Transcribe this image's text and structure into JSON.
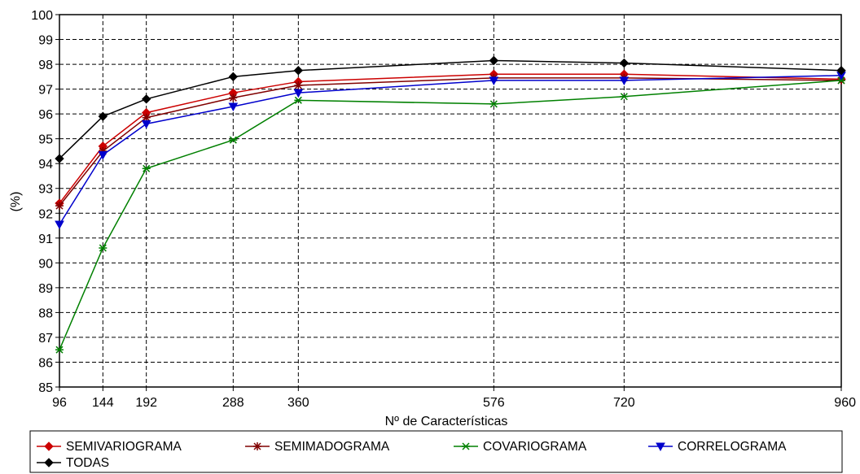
{
  "chart_data": {
    "type": "line",
    "title": "",
    "xlabel": "Nº de Características",
    "ylabel": "(%)",
    "x": [
      96,
      144,
      192,
      288,
      360,
      576,
      720,
      960
    ],
    "x_ticks": [
      "96",
      "144",
      "192",
      "288",
      "360",
      "576",
      "720",
      "960"
    ],
    "ylim": [
      85,
      100
    ],
    "y_ticks": [
      "85",
      "86",
      "87",
      "88",
      "89",
      "90",
      "91",
      "92",
      "93",
      "94",
      "95",
      "96",
      "97",
      "98",
      "99",
      "100"
    ],
    "grid": true,
    "legend_position": "bottom",
    "series": [
      {
        "name": "SEMIVARIOGRAMA",
        "color": "#cc0000",
        "marker": "diamond",
        "values": [
          92.4,
          94.7,
          96.05,
          96.85,
          97.3,
          97.6,
          97.6,
          97.4
        ]
      },
      {
        "name": "SEMIMADOGRAMA",
        "color": "#800000",
        "marker": "asterisk",
        "values": [
          92.3,
          94.5,
          95.85,
          96.65,
          97.15,
          97.45,
          97.45,
          97.35
        ]
      },
      {
        "name": "COVARIOGRAMA",
        "color": "#008000",
        "marker": "cross",
        "values": [
          86.5,
          90.6,
          93.8,
          94.95,
          96.55,
          96.4,
          96.7,
          97.35
        ]
      },
      {
        "name": "CORRELOGRAMA",
        "color": "#0000cc",
        "marker": "triangle-down",
        "values": [
          91.55,
          94.35,
          95.6,
          96.3,
          96.85,
          97.35,
          97.35,
          97.55
        ]
      },
      {
        "name": "TODAS",
        "color": "#000000",
        "marker": "diamond",
        "values": [
          94.2,
          95.9,
          96.6,
          97.5,
          97.75,
          98.15,
          98.05,
          97.75
        ]
      }
    ]
  }
}
